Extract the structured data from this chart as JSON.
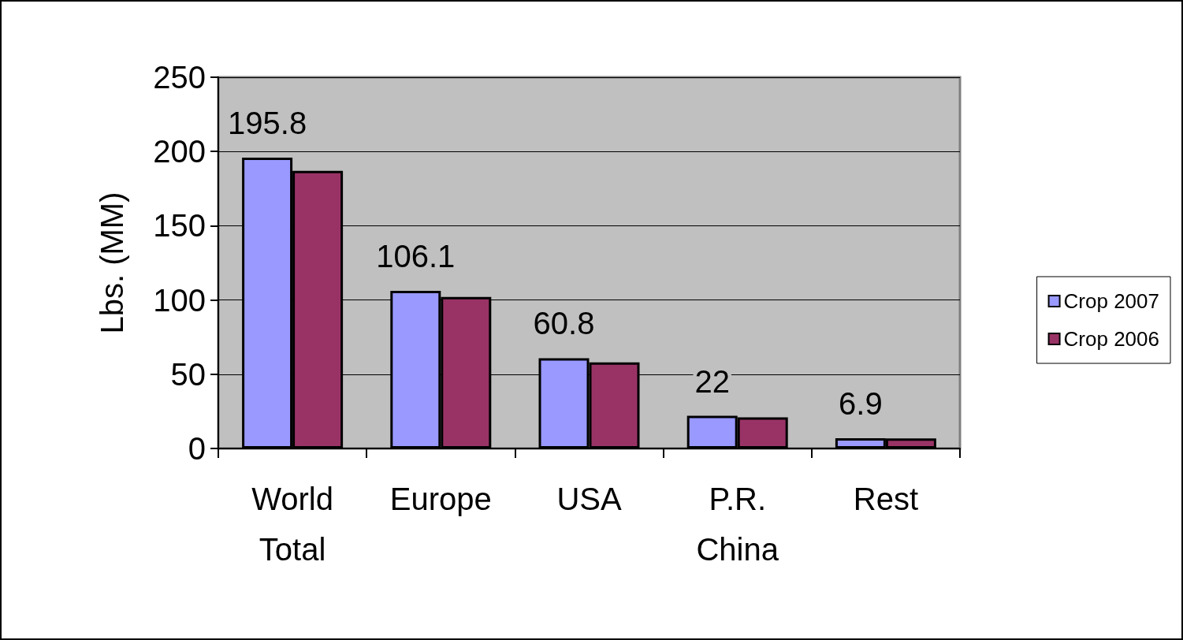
{
  "chart_data": {
    "type": "bar",
    "ylabel": "Lbs. (MM)",
    "categories": [
      "World\nTotal",
      "Europe",
      "USA",
      "P.R.\nChina",
      "Rest"
    ],
    "series": [
      {
        "name": "Crop 2007",
        "color": "#9999ff",
        "values": [
          195.8,
          106.1,
          60.8,
          22,
          6.9
        ],
        "value_labels": [
          "195.8",
          "106.1",
          "60.8",
          "22",
          "6.9"
        ]
      },
      {
        "name": "Crop 2006",
        "color": "#993366",
        "values": [
          187,
          102,
          58,
          21,
          6.8
        ]
      }
    ],
    "ylim": [
      0,
      250
    ],
    "yticks": [
      0,
      50,
      100,
      150,
      200,
      250
    ],
    "grid": "y",
    "legend": "right"
  }
}
